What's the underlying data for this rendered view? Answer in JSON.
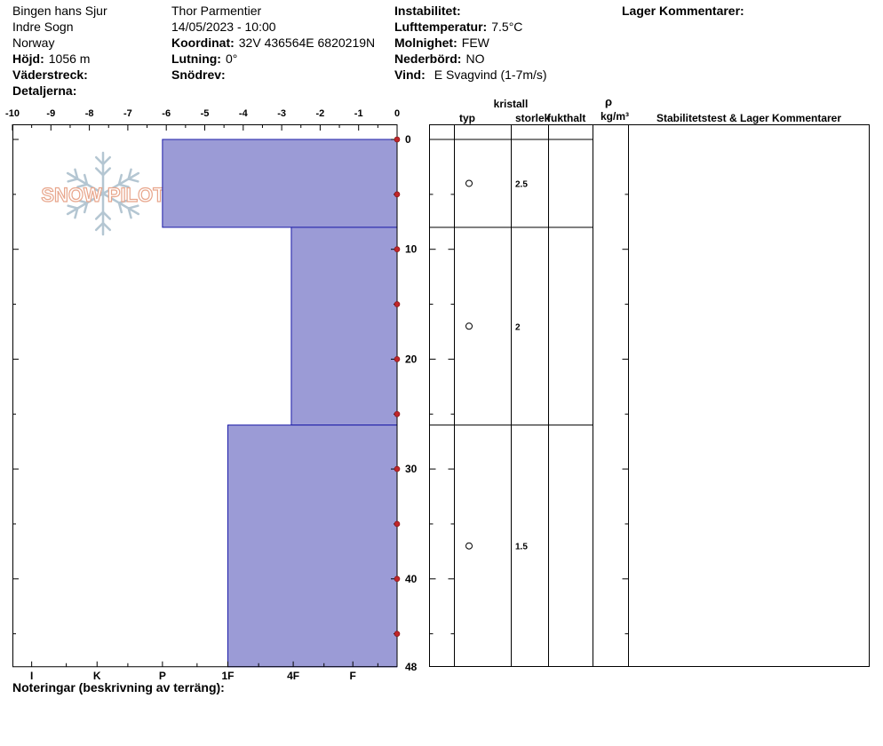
{
  "header": {
    "location": "Bingen hans Sjur",
    "region": "Indre Sogn",
    "country": "Norway",
    "elevation_label": "Höjd:",
    "elevation_value": "1056 m",
    "aspect_label": "Väderstreck:",
    "aspect_value": "",
    "details_label": "Detaljerna:",
    "details_value": "",
    "observer": "Thor Parmentier",
    "datetime": "14/05/2023 - 10:00",
    "coord_label": "Koordinat:",
    "coord_value": "32V 436564E 6820219N",
    "slope_label": "Lutning:",
    "slope_value": "0°",
    "drift_label": "Snödrev:",
    "drift_value": "",
    "instability_label": "Instabilitet:",
    "instability_value": "",
    "airtemp_label": "Lufttemperatur:",
    "airtemp_value": "7.5°C",
    "sky_label": "Molnighet:",
    "sky_value": "FEW",
    "precip_label": "Nederbörd:",
    "precip_value": "NO",
    "wind_label": "Vind:",
    "wind_value": "E Svagvind (1-7m/s)",
    "layer_comments_label": "Lager Kommentarer:"
  },
  "logo": {
    "text": "SNOW PILOT"
  },
  "columns": {
    "crystal": "kristall",
    "type": "typ",
    "size": "storlek",
    "moisture": "fukthalt",
    "rho": "ρ",
    "density_unit": "kg/m³",
    "stability": "Stabilitetstest & Lager Kommentarer"
  },
  "footer": {
    "notes_label": "Noteringar (beskrivning av terräng):"
  },
  "colors": {
    "hardness_fill": "#9b9bd6",
    "hardness_stroke": "#1c1ca8",
    "temp_marker": "#c0262a"
  },
  "chart_data": {
    "type": "bar",
    "orientation": "horizontal",
    "temperature_axis": {
      "min": -10,
      "max": 0,
      "ticks": [
        -10,
        -9,
        -8,
        -7,
        -6,
        -5,
        -4,
        -3,
        -2,
        -1,
        0
      ]
    },
    "depth_axis": {
      "min": 0,
      "max": 48,
      "unit": "cm",
      "labels": [
        0,
        10,
        20,
        30,
        40,
        48
      ]
    },
    "hardness_labels": [
      {
        "label": "I",
        "temp": -9.5
      },
      {
        "label": "K",
        "temp": -7.8
      },
      {
        "label": "P",
        "temp": -6.1
      },
      {
        "label": "1F",
        "temp": -4.4
      },
      {
        "label": "4F",
        "temp": -2.7
      },
      {
        "label": "F",
        "temp": -1.15
      }
    ],
    "layers": [
      {
        "top": 0,
        "bottom": 8,
        "hardness_extent": -6.1,
        "grain_size": "2.5",
        "grain_form": "round"
      },
      {
        "top": 8,
        "bottom": 26,
        "hardness_extent": -2.75,
        "grain_size": "2",
        "grain_form": "round"
      },
      {
        "top": 26,
        "bottom": 48,
        "hardness_extent": -4.4,
        "grain_size": "1.5",
        "grain_form": "round"
      }
    ],
    "temperature_profile": [
      {
        "depth": 0,
        "temp": 0
      },
      {
        "depth": 5,
        "temp": 0
      },
      {
        "depth": 10,
        "temp": 0
      },
      {
        "depth": 15,
        "temp": 0
      },
      {
        "depth": 20,
        "temp": 0
      },
      {
        "depth": 25,
        "temp": 0
      },
      {
        "depth": 30,
        "temp": 0
      },
      {
        "depth": 35,
        "temp": 0
      },
      {
        "depth": 40,
        "temp": 0
      },
      {
        "depth": 45,
        "temp": 0
      }
    ]
  }
}
